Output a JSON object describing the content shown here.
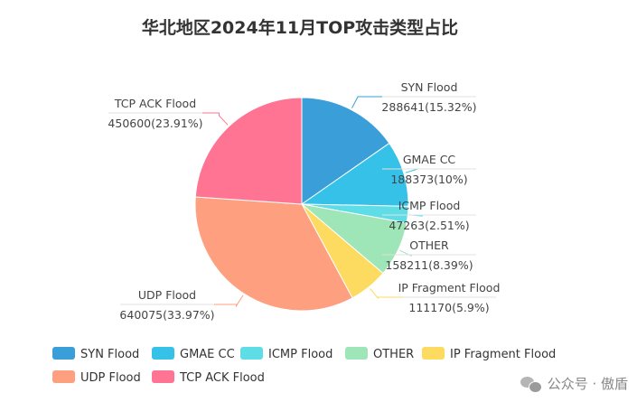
{
  "chart_data": {
    "type": "pie",
    "title": "华北地区2024年11月TOP攻击类型占比",
    "slices": [
      {
        "name": "SYN Flood",
        "value": 288641,
        "percent": "15.32%",
        "label": "288641(15.32%)",
        "color": "#3a9fd8"
      },
      {
        "name": "GMAE CC",
        "value": 188373,
        "percent": "10%",
        "label": "188373(10%)",
        "color": "#36c1e8"
      },
      {
        "name": "ICMP Flood",
        "value": 47263,
        "percent": "2.51%",
        "label": "47263(2.51%)",
        "color": "#5fdde6"
      },
      {
        "name": "OTHER",
        "value": 158211,
        "percent": "8.39%",
        "label": "158211(8.39%)",
        "color": "#9ee5b7"
      },
      {
        "name": "IP Fragment Flood",
        "value": 111170,
        "percent": "5.9%",
        "label": "111170(5.9%)",
        "color": "#fddb60"
      },
      {
        "name": "UDP Flood",
        "value": 640075,
        "percent": "33.97%",
        "label": "640075(33.97%)",
        "color": "#fea07f"
      },
      {
        "name": "TCP ACK Flood",
        "value": 450600,
        "percent": "23.91%",
        "label": "450600(23.91%)",
        "color": "#fe7492"
      }
    ],
    "legend_position": "bottom-left"
  },
  "watermark": {
    "text": "公众号 · 傲盾",
    "icon": "wechat-icon"
  }
}
